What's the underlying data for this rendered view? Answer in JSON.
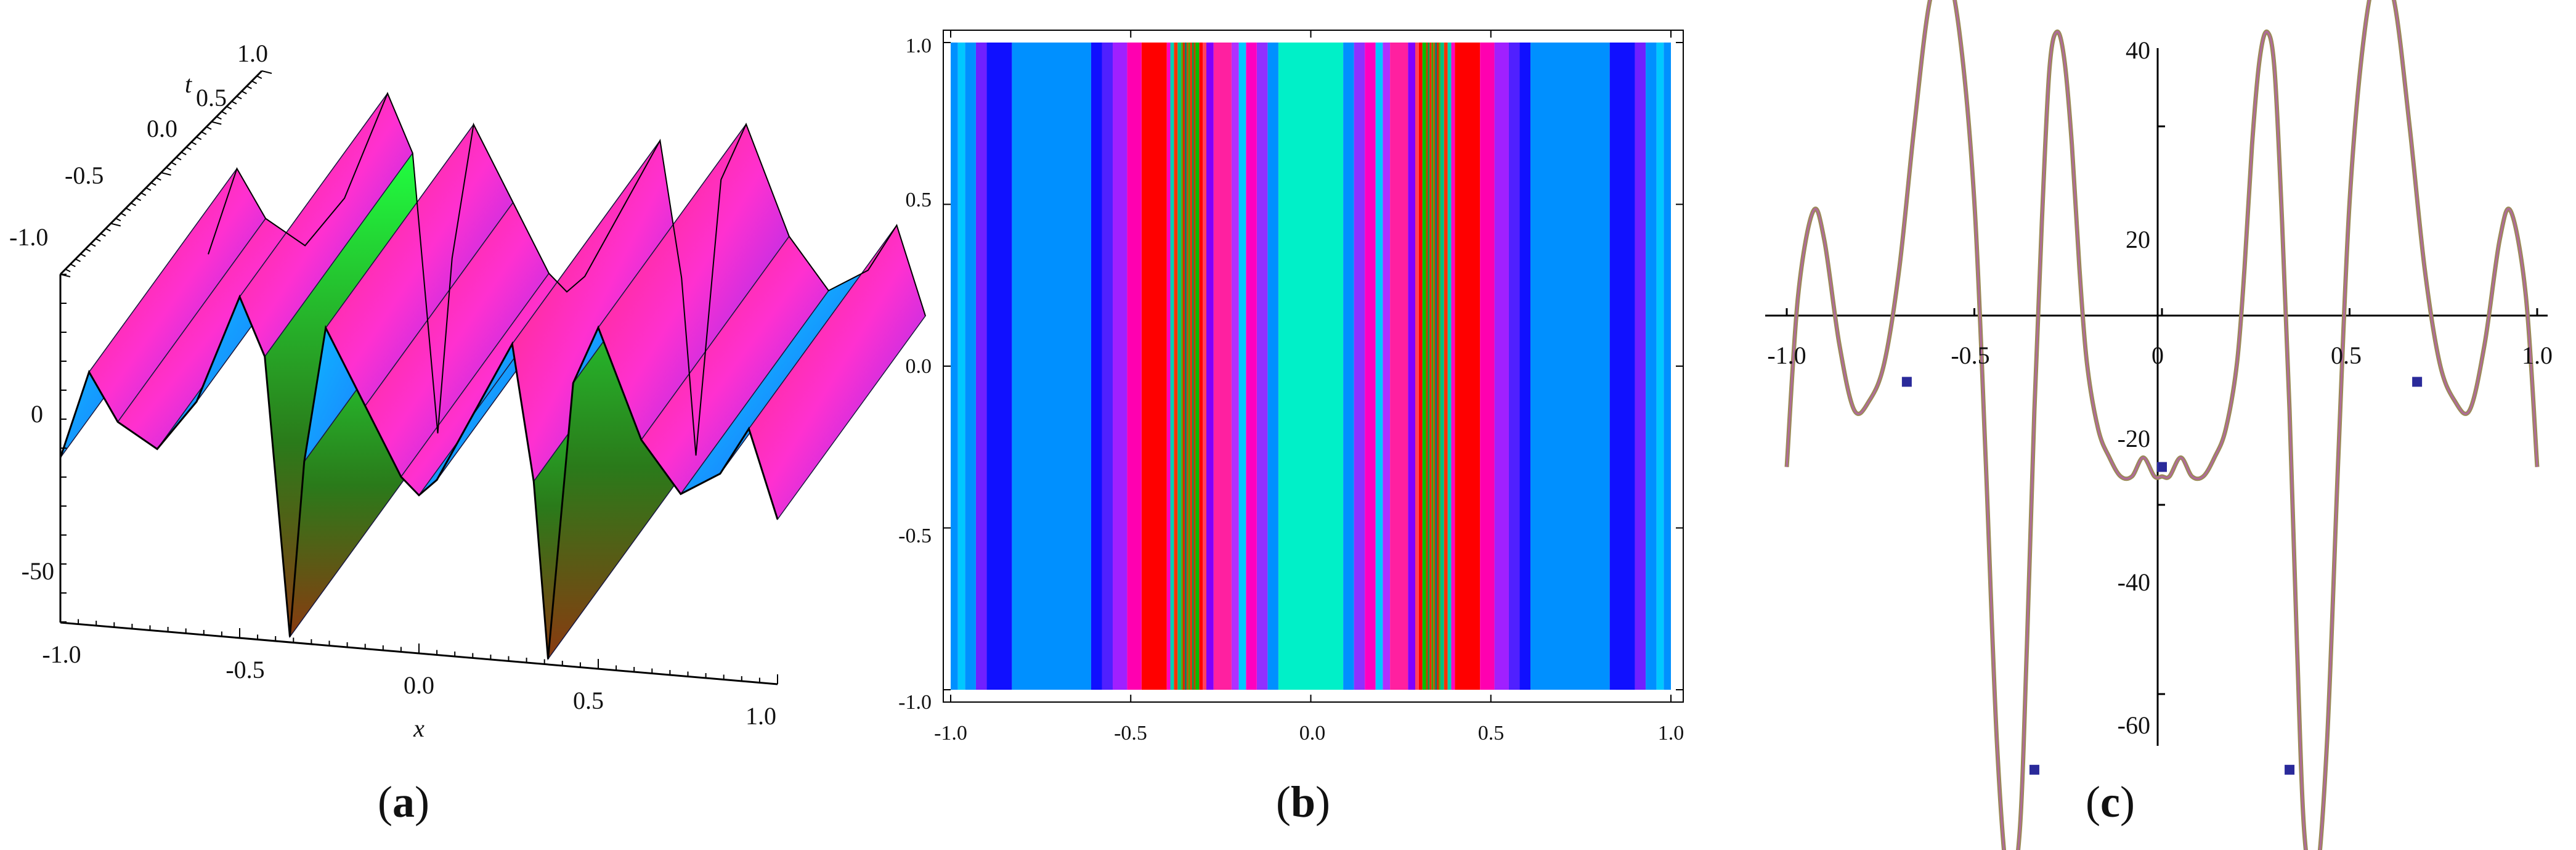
{
  "captions": {
    "a": {
      "open": "(",
      "letter": "a",
      "close": ")"
    },
    "b": {
      "open": "(",
      "letter": "b",
      "close": ")"
    },
    "c": {
      "open": "(",
      "letter": "c",
      "close": ")"
    }
  },
  "chart_data": [
    {
      "id": "a",
      "type": "surface3d",
      "xlabel": "x",
      "tlabel": "t",
      "xlim": [
        -1.0,
        1.0
      ],
      "tlim": [
        -1.0,
        1.0
      ],
      "zlim": [
        -62,
        38
      ],
      "x_ticks": [
        "-1.0",
        "-0.5",
        "0.0",
        "0.5",
        "1.0"
      ],
      "t_ticks": [
        "-1.0",
        "-0.5",
        "0.0",
        "0.5",
        "1.0"
      ],
      "z_ticks": [
        "0",
        "-50"
      ],
      "profile_x": [
        -1.0,
        -0.92,
        -0.84,
        -0.73,
        -0.62,
        -0.5,
        -0.43,
        -0.36,
        -0.32,
        -0.26,
        -0.15,
        -0.05,
        0.0,
        0.05,
        0.15,
        0.26,
        0.32,
        0.36,
        0.43,
        0.5,
        0.62,
        0.73,
        0.84,
        0.92,
        1.0
      ],
      "profile_z": [
        -15,
        11,
        -3,
        -10,
        5,
        37,
        20,
        -62,
        -10,
        30,
        8,
        -12,
        -17,
        -12,
        8,
        30,
        -10,
        -62,
        20,
        37,
        5,
        -10,
        -3,
        11,
        -15
      ]
    },
    {
      "id": "b",
      "type": "heatmap",
      "xlim": [
        -1.0,
        1.0
      ],
      "ylim": [
        -1.0,
        1.0
      ],
      "x_ticks": [
        "-1.0",
        "-0.5",
        "0.0",
        "0.5",
        "1.0"
      ],
      "y_ticks": [
        "1.0",
        "0.5",
        "0.0",
        "-0.5",
        "-1.0"
      ],
      "bands_right_half": [
        {
          "x0": 0.0,
          "x1": 0.09,
          "color": "#00f0c8"
        },
        {
          "x0": 0.09,
          "x1": 0.12,
          "color": "#0090ff"
        },
        {
          "x0": 0.12,
          "x1": 0.15,
          "color": "#9030ff"
        },
        {
          "x0": 0.15,
          "x1": 0.18,
          "color": "#ff00c0"
        },
        {
          "x0": 0.18,
          "x1": 0.2,
          "color": "#00c8ff"
        },
        {
          "x0": 0.2,
          "x1": 0.22,
          "color": "#b030ff"
        },
        {
          "x0": 0.22,
          "x1": 0.27,
          "color": "#ff20a0"
        },
        {
          "x0": 0.27,
          "x1": 0.29,
          "color": "#8000ff"
        },
        {
          "x0": 0.29,
          "x1": 0.3,
          "color": "#ff4060"
        },
        {
          "x0": 0.3,
          "x1": 0.31,
          "color": "#ff0000"
        },
        {
          "x0": 0.31,
          "x1": 0.32,
          "color": "#00c000"
        },
        {
          "x0": 0.32,
          "x1": 0.325,
          "color": "#c04000"
        },
        {
          "x0": 0.325,
          "x1": 0.33,
          "color": "#00a040"
        },
        {
          "x0": 0.33,
          "x1": 0.335,
          "color": "#ff2000"
        },
        {
          "x0": 0.335,
          "x1": 0.34,
          "color": "#40a000"
        },
        {
          "x0": 0.34,
          "x1": 0.345,
          "color": "#c05000"
        },
        {
          "x0": 0.345,
          "x1": 0.35,
          "color": "#008060"
        },
        {
          "x0": 0.35,
          "x1": 0.355,
          "color": "#e02000"
        },
        {
          "x0": 0.355,
          "x1": 0.36,
          "color": "#60a000"
        },
        {
          "x0": 0.36,
          "x1": 0.37,
          "color": "#00c080"
        },
        {
          "x0": 0.37,
          "x1": 0.38,
          "color": "#ff3000"
        },
        {
          "x0": 0.38,
          "x1": 0.39,
          "color": "#00d0b0"
        },
        {
          "x0": 0.39,
          "x1": 0.4,
          "color": "#ff00c0"
        },
        {
          "x0": 0.4,
          "x1": 0.47,
          "color": "#ff0000"
        },
        {
          "x0": 0.47,
          "x1": 0.51,
          "color": "#ff00b0"
        },
        {
          "x0": 0.51,
          "x1": 0.55,
          "color": "#a020ff"
        },
        {
          "x0": 0.55,
          "x1": 0.58,
          "color": "#5020ff"
        },
        {
          "x0": 0.58,
          "x1": 0.61,
          "color": "#1010ff"
        },
        {
          "x0": 0.61,
          "x1": 0.83,
          "color": "#0090ff"
        },
        {
          "x0": 0.83,
          "x1": 0.9,
          "color": "#1010ff"
        },
        {
          "x0": 0.9,
          "x1": 0.93,
          "color": "#7020ff"
        },
        {
          "x0": 0.93,
          "x1": 0.96,
          "color": "#0090ff"
        },
        {
          "x0": 0.96,
          "x1": 0.98,
          "color": "#00c8ff"
        },
        {
          "x0": 0.98,
          "x1": 1.0,
          "color": "#0090ff"
        }
      ]
    },
    {
      "id": "c",
      "type": "line",
      "xlim": [
        -1.0,
        1.0
      ],
      "ylim": [
        -62,
        40
      ],
      "x_ticks": [
        "-1.0",
        "-0.5",
        "0",
        "0.5",
        "1.0"
      ],
      "x_tick_values": [
        -1.0,
        -0.5,
        0,
        0.5,
        1.0
      ],
      "y_ticks": [
        "40",
        "20",
        "-20",
        "-40",
        "-60"
      ],
      "y_tick_values": [
        40,
        20,
        -20,
        -40,
        -60
      ],
      "line_color": "#b06a9a",
      "marker_color": "#2a2a9a",
      "x": [
        -1.0,
        -0.97,
        -0.93,
        -0.9,
        -0.86,
        -0.82,
        -0.78,
        -0.74,
        -0.7,
        -0.66,
        -0.62,
        -0.58,
        -0.54,
        -0.5,
        -0.47,
        -0.44,
        -0.41,
        -0.38,
        -0.36,
        -0.34,
        -0.32,
        -0.3,
        -0.28,
        -0.26,
        -0.24,
        -0.22,
        -0.2,
        -0.17,
        -0.14,
        -0.11,
        -0.08,
        -0.05,
        -0.02,
        0.0,
        0.02,
        0.05,
        0.08,
        0.11,
        0.14,
        0.17,
        0.2,
        0.22,
        0.24,
        0.26,
        0.28,
        0.3,
        0.32,
        0.34,
        0.36,
        0.38,
        0.41,
        0.44,
        0.47,
        0.5,
        0.54,
        0.58,
        0.62,
        0.66,
        0.7,
        0.74,
        0.78,
        0.82,
        0.86,
        0.9,
        0.93,
        0.97,
        1.0
      ],
      "y": [
        -16,
        2,
        11,
        8,
        -3,
        -10,
        -9,
        -5,
        5,
        20,
        33,
        37,
        30,
        12,
        -15,
        -45,
        -60,
        -55,
        -35,
        -10,
        10,
        26,
        30,
        27,
        18,
        5,
        -5,
        -12,
        -15,
        -17,
        -17,
        -15,
        -17,
        -17,
        -17,
        -15,
        -17,
        -17,
        -15,
        -12,
        -5,
        5,
        18,
        27,
        30,
        26,
        10,
        -10,
        -35,
        -55,
        -60,
        -45,
        -15,
        12,
        30,
        37,
        33,
        20,
        5,
        -5,
        -9,
        -10,
        -3,
        8,
        11,
        2,
        -16
      ],
      "markers_x": [
        -0.68,
        -0.34,
        0.0,
        0.34,
        0.68
      ],
      "markers_y": [
        -7,
        -48,
        -16,
        -48,
        -7
      ]
    }
  ]
}
